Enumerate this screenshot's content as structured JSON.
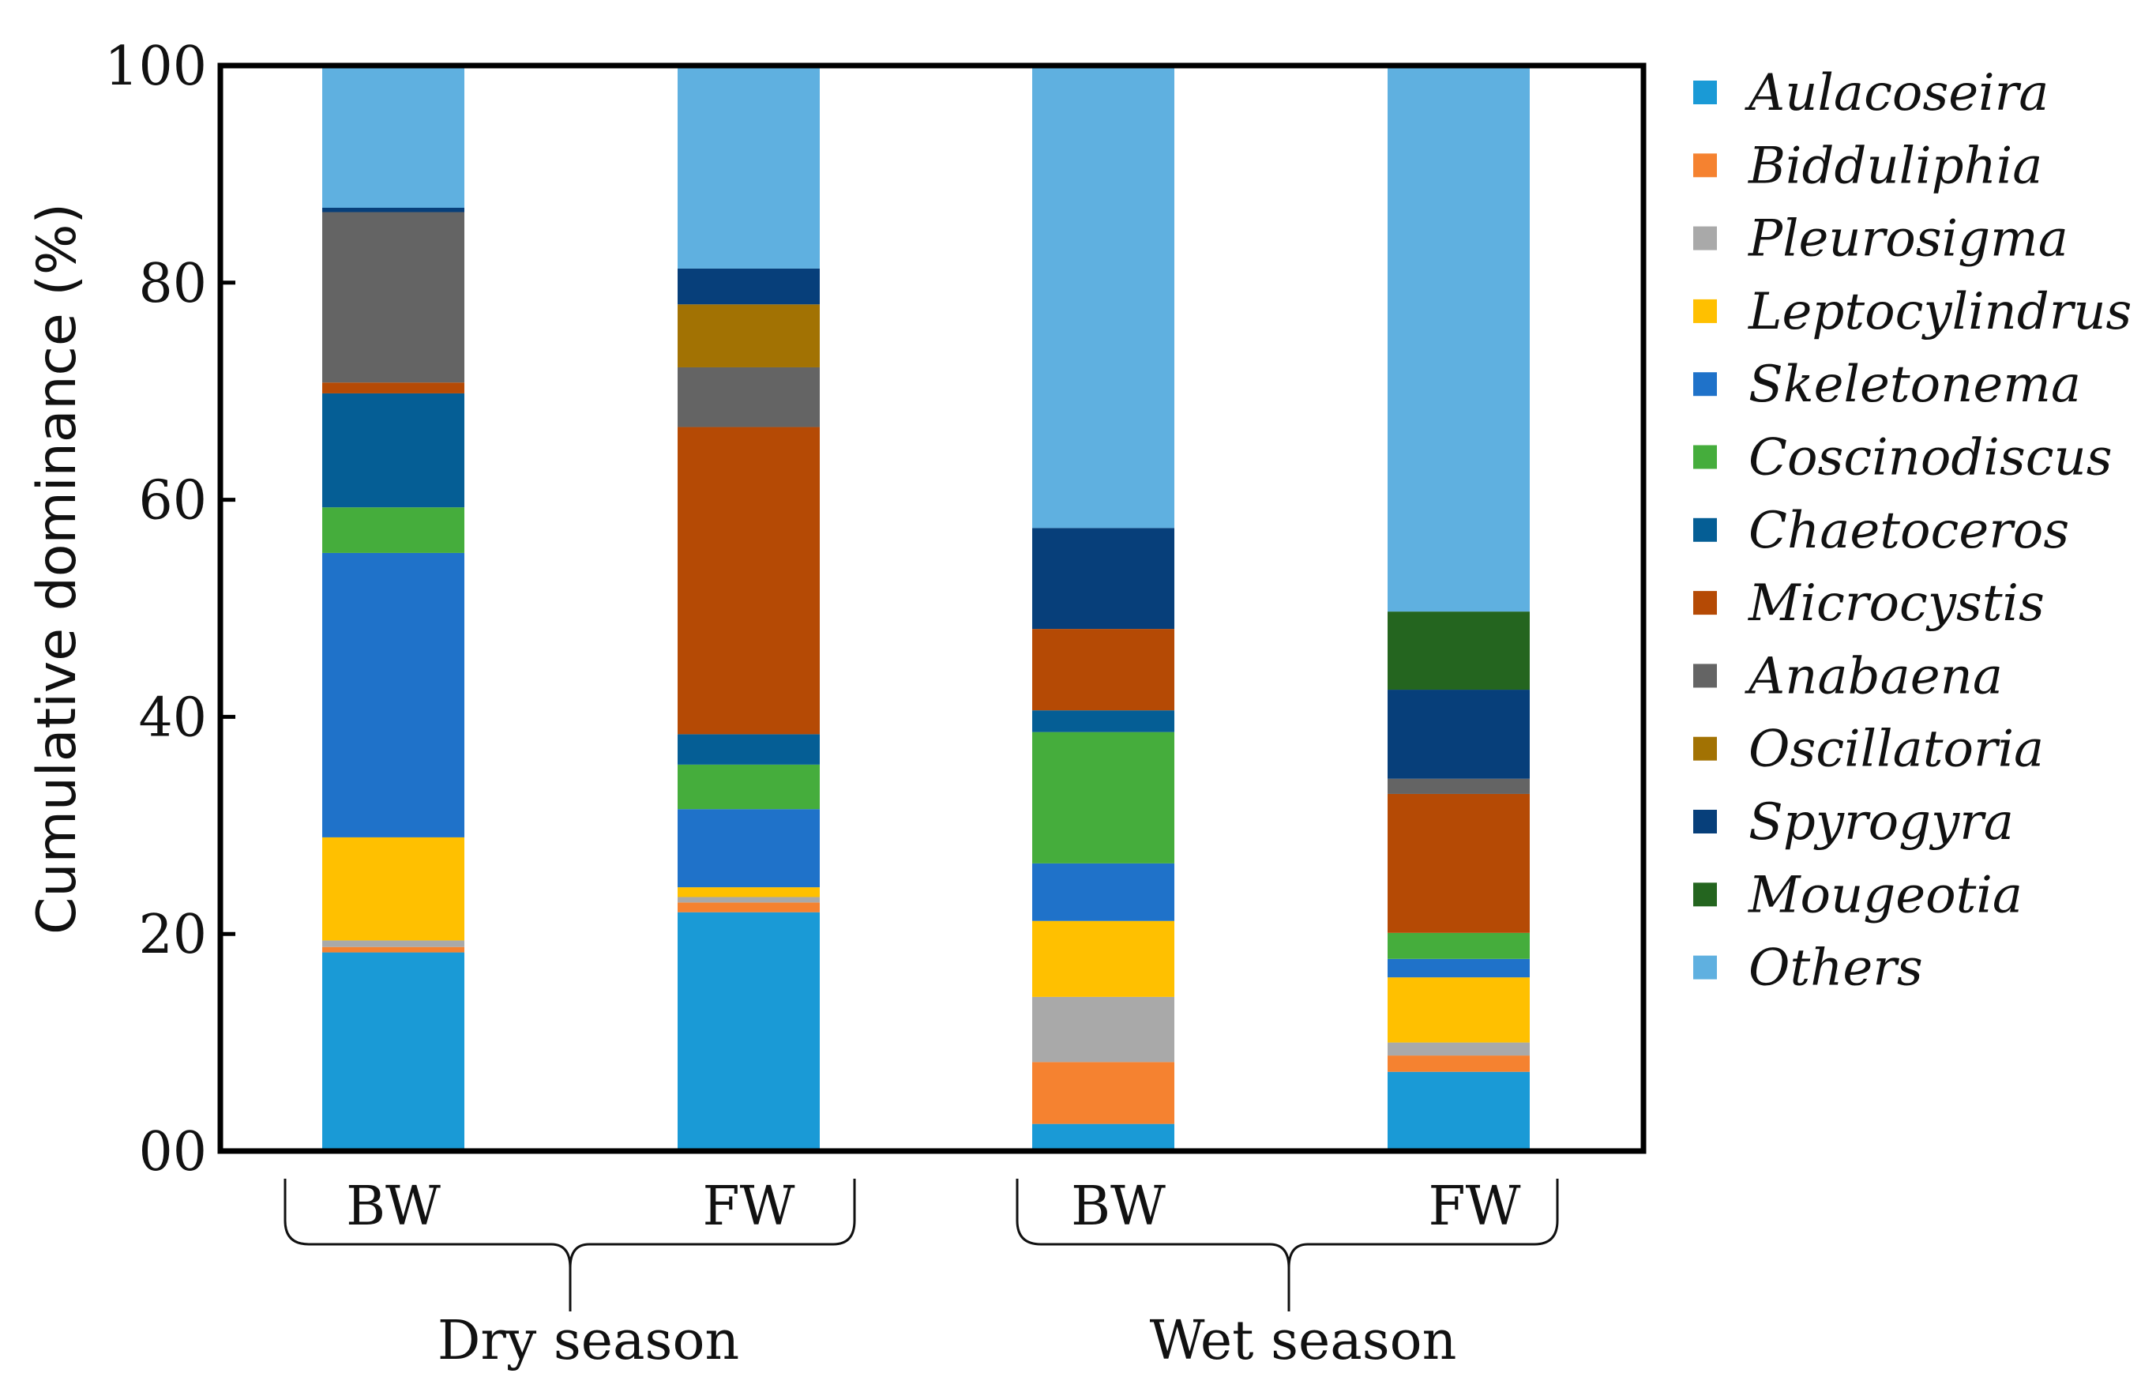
{
  "chart_data": {
    "type": "stacked-bar",
    "ylabel": "Cumulative dominance (%)",
    "ylim": [
      0,
      100
    ],
    "yticks": [
      0,
      20,
      40,
      60,
      80,
      100
    ],
    "ytick_labels": [
      "00",
      "20",
      "40",
      "60",
      "80",
      "100"
    ],
    "categories": [
      "BW",
      "FW",
      "BW",
      "FW"
    ],
    "groups": [
      {
        "label": "Dry season",
        "members": [
          0,
          1
        ]
      },
      {
        "label": "Wet season",
        "members": [
          2,
          3
        ]
      }
    ],
    "legend_position": "right",
    "series": [
      {
        "name": "Aulacoseira",
        "color": "#1a9ad6",
        "values": [
          18.3,
          22.0,
          2.5,
          7.3
        ]
      },
      {
        "name": "Bidduliphia",
        "color": "#f58230",
        "values": [
          0.5,
          0.9,
          5.7,
          1.5
        ]
      },
      {
        "name": "Pleurosigma",
        "color": "#a9a9a9",
        "values": [
          0.6,
          0.5,
          6.0,
          1.2
        ]
      },
      {
        "name": "Leptocylindrus",
        "color": "#ffc000",
        "values": [
          9.5,
          0.9,
          7.0,
          6.0
        ]
      },
      {
        "name": "Skeletonema",
        "color": "#1f72c9",
        "values": [
          26.2,
          7.2,
          5.3,
          1.7
        ]
      },
      {
        "name": "Coscinodiscus",
        "color": "#45ad3c",
        "values": [
          4.2,
          4.1,
          12.1,
          2.4
        ]
      },
      {
        "name": "Chaetoceros",
        "color": "#055e95",
        "values": [
          10.5,
          2.8,
          2.0,
          0.0
        ]
      },
      {
        "name": "Microcystis",
        "color": "#b54a05",
        "values": [
          1.0,
          28.3,
          7.5,
          12.8
        ]
      },
      {
        "name": "Anabaena",
        "color": "#646464",
        "values": [
          15.7,
          5.5,
          0.0,
          1.4
        ]
      },
      {
        "name": "Oscillatoria",
        "color": "#a27203",
        "values": [
          0.0,
          5.8,
          0.0,
          0.0
        ]
      },
      {
        "name": "Spyrogyra",
        "color": "#073f7a",
        "values": [
          0.4,
          3.3,
          9.3,
          8.2
        ]
      },
      {
        "name": "Mougeotia",
        "color": "#24651f",
        "values": [
          0.0,
          0.0,
          0.0,
          7.2
        ]
      },
      {
        "name": "Others",
        "color": "#5fb0e0",
        "values": [
          13.1,
          18.7,
          42.6,
          50.3
        ]
      }
    ]
  }
}
